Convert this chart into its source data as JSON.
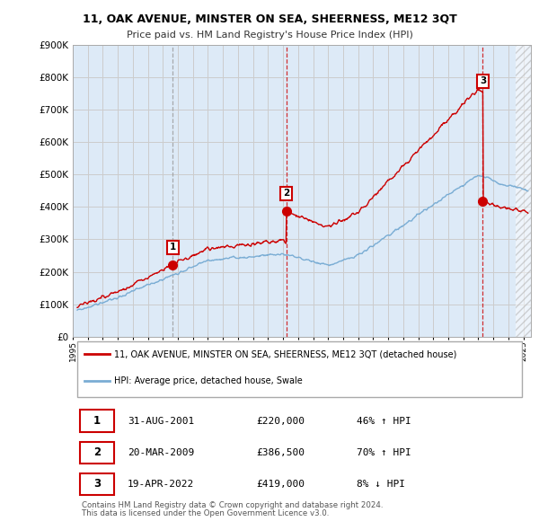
{
  "title": "11, OAK AVENUE, MINSTER ON SEA, SHEERNESS, ME12 3QT",
  "subtitle": "Price paid vs. HM Land Registry's House Price Index (HPI)",
  "ylim": [
    0,
    900000
  ],
  "yticks": [
    0,
    100000,
    200000,
    300000,
    400000,
    500000,
    600000,
    700000,
    800000,
    900000
  ],
  "xlim_start": 1995.3,
  "xlim_end": 2025.5,
  "sale_dates": [
    2001.667,
    2009.217,
    2022.3
  ],
  "sale_prices": [
    220000,
    386500,
    419000
  ],
  "sale_labels": [
    "1",
    "2",
    "3"
  ],
  "vline1_color": "#aaaaaa",
  "vline2_color": "#cc0000",
  "vline3_color": "#cc0000",
  "legend_line1": "11, OAK AVENUE, MINSTER ON SEA, SHEERNESS, ME12 3QT (detached house)",
  "legend_line2": "HPI: Average price, detached house, Swale",
  "table_rows": [
    [
      "1",
      "31-AUG-2001",
      "£220,000",
      "46% ↑ HPI"
    ],
    [
      "2",
      "20-MAR-2009",
      "£386,500",
      "70% ↑ HPI"
    ],
    [
      "3",
      "19-APR-2022",
      "£419,000",
      "8% ↓ HPI"
    ]
  ],
  "footnote1": "Contains HM Land Registry data © Crown copyright and database right 2024.",
  "footnote2": "This data is licensed under the Open Government Licence v3.0.",
  "red_color": "#cc0000",
  "blue_color": "#7aadd4",
  "bg_color": "#ffffff",
  "grid_color": "#cccccc",
  "plot_bg_color": "#ddeaf7"
}
